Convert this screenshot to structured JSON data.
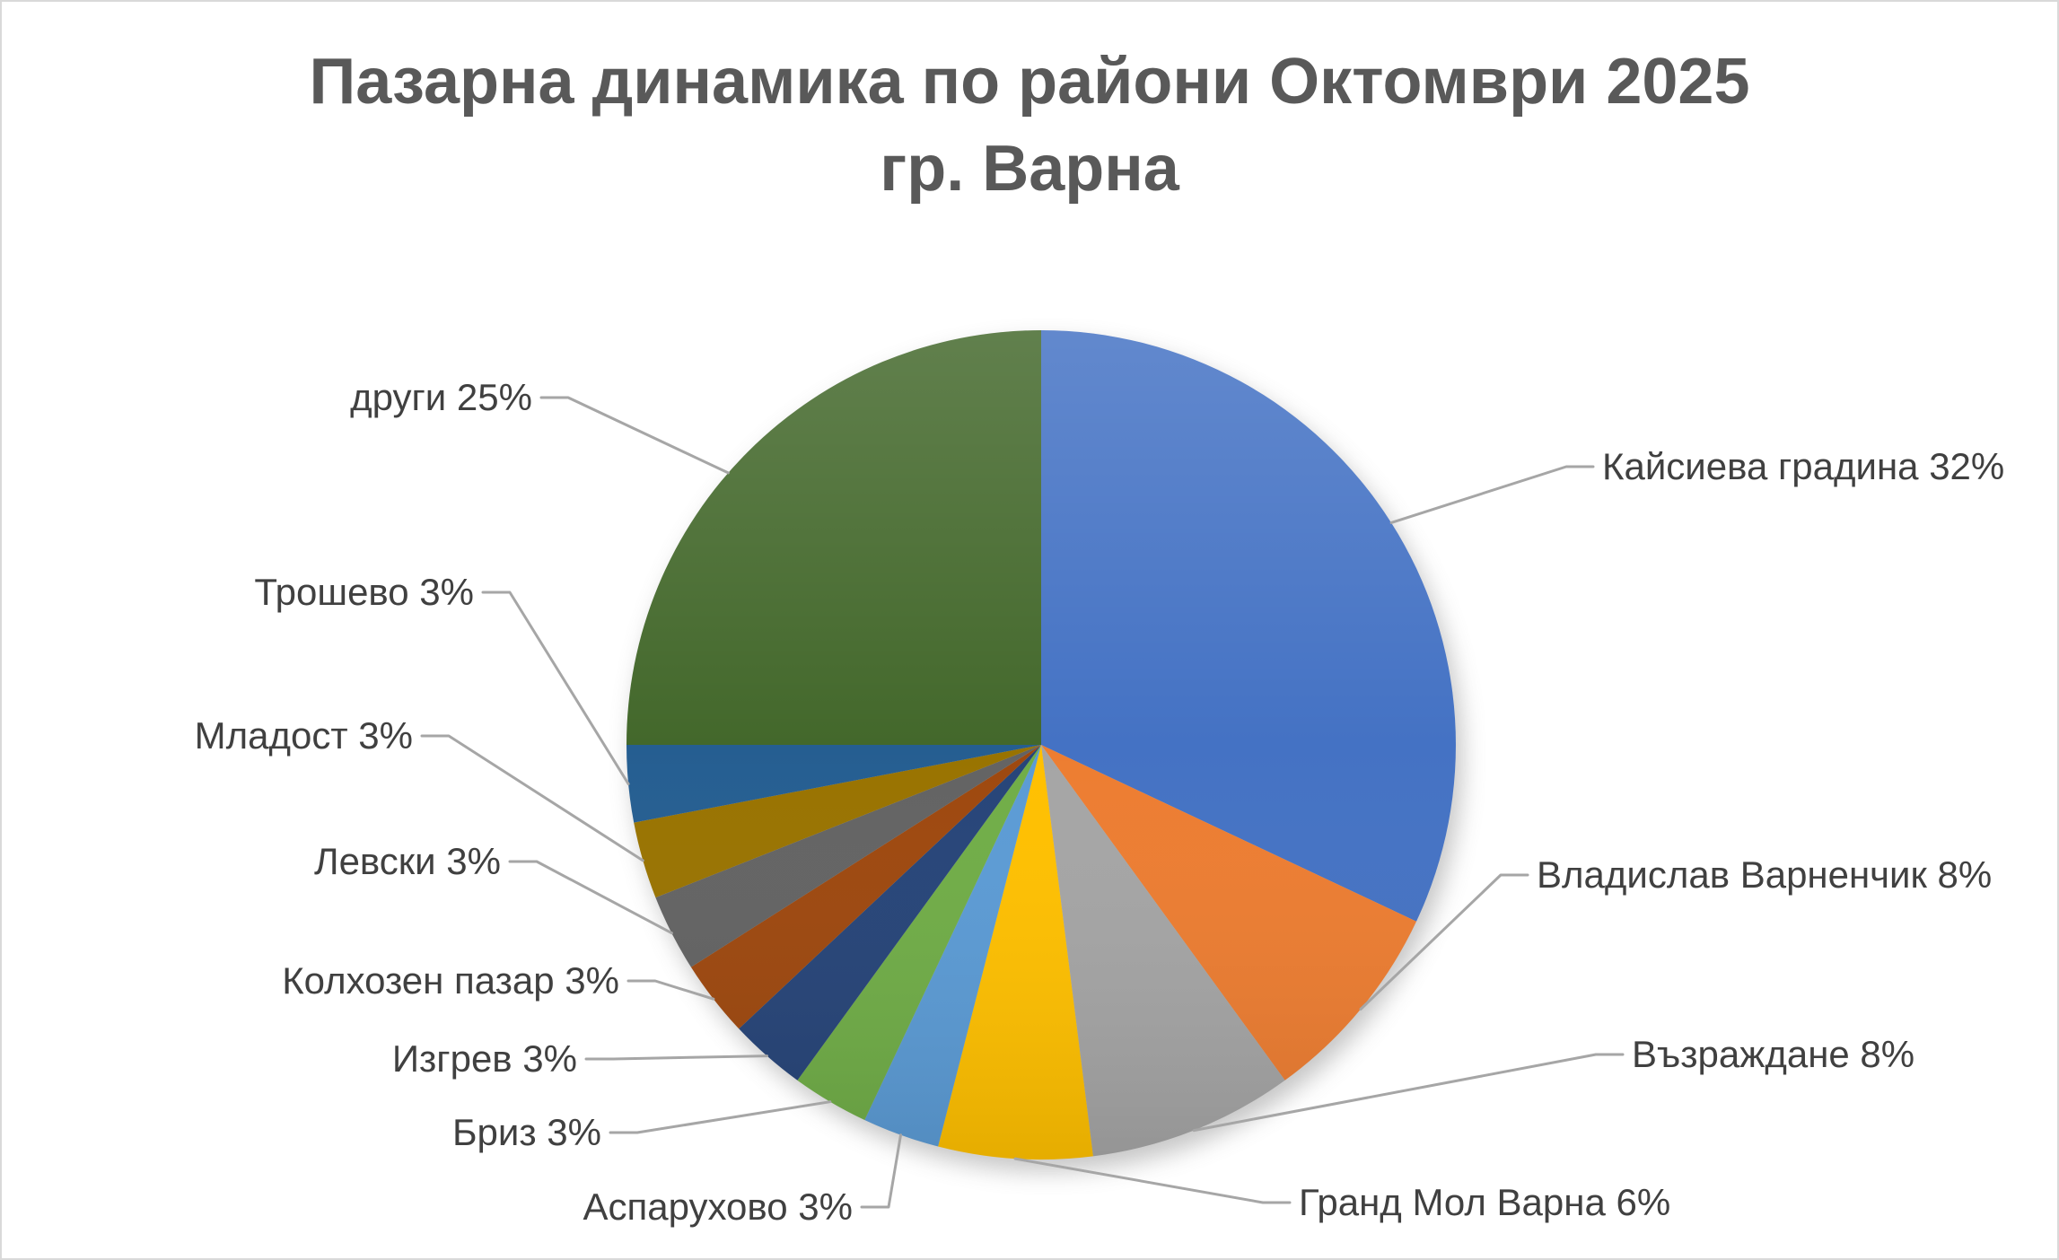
{
  "title": {
    "line1": "Пазарна динамика по райони Октомври 2025",
    "line2": "гр. Варна"
  },
  "chart_data": {
    "type": "pie",
    "title": "Пазарна динамика по райони Октомври 2025 гр. Варна",
    "unit": "%",
    "direction": "clockwise",
    "start_angle_deg": 0,
    "legend": "none",
    "labels_position": "outside-end-with-leader-lines",
    "categories": [
      "Кайсиева градина",
      "Владислав Варненчик",
      "Възраждане",
      "Гранд Мол Варна",
      "Аспарухово",
      "Бриз",
      "Изгрев",
      "Колхозен пазар",
      "Левски",
      "Младост",
      "Трошево",
      "други"
    ],
    "values": [
      32,
      8,
      8,
      6,
      3,
      3,
      3,
      3,
      3,
      3,
      3,
      25
    ],
    "labels": [
      "Кайсиева градина 32%",
      "Владислав Варненчик 8%",
      "Възраждане 8%",
      "Гранд Мол Варна 6%",
      "Аспарухово 3%",
      "Бриз 3%",
      "Изгрев 3%",
      "Колхозен пазар 3%",
      "Левски 3%",
      "Младост 3%",
      "Трошево 3%",
      "други 25%"
    ],
    "colors": [
      "#4472C4",
      "#ED7D31",
      "#A5A5A5",
      "#FFC000",
      "#5B9BD5",
      "#70AD47",
      "#264478",
      "#9E480E",
      "#636363",
      "#997300",
      "#255E91",
      "#43682B"
    ],
    "title_color": "#595959",
    "label_color": "#404040",
    "leader_line_color": "#A6A6A6",
    "background": "#FFFFFF"
  }
}
